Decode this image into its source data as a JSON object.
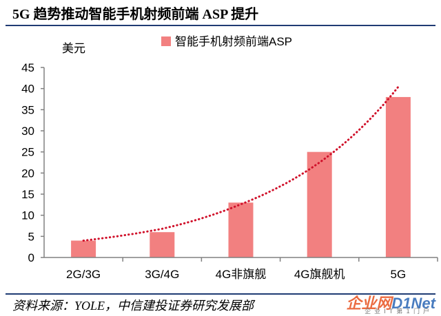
{
  "header": {
    "title": "5G 趋势推动智能手机射频前端 ASP 提升"
  },
  "chart_data": {
    "type": "bar",
    "title": "5G 趋势推动智能手机射频前端 ASP 提升",
    "ylabel": "美元",
    "xlabel": "",
    "categories": [
      "2G/3G",
      "3G/4G",
      "4G非旗舰",
      "4G旗舰机",
      "5G"
    ],
    "series": [
      {
        "name": "智能手机射频前端ASP",
        "values": [
          4,
          6,
          13,
          25,
          38
        ]
      }
    ],
    "trendline": {
      "type": "exponential",
      "style": "dotted",
      "values": [
        4,
        6.8,
        12.6,
        22.5,
        40.4
      ]
    },
    "ylim": [
      0,
      45
    ],
    "yticks": [
      0,
      5,
      10,
      15,
      20,
      25,
      30,
      35,
      40,
      45
    ],
    "grid": false,
    "legend_position": "top-center",
    "colors": {
      "bar": "#f28080",
      "trendline": "#d0102a",
      "axis": "#808080"
    }
  },
  "footer": {
    "source": "资料来源：YOLE，中信建投证券研究发展部"
  },
  "watermark": {
    "main_orange": "企业网",
    "main_blue": "D1Net",
    "sub": "企业IT第1门户"
  }
}
